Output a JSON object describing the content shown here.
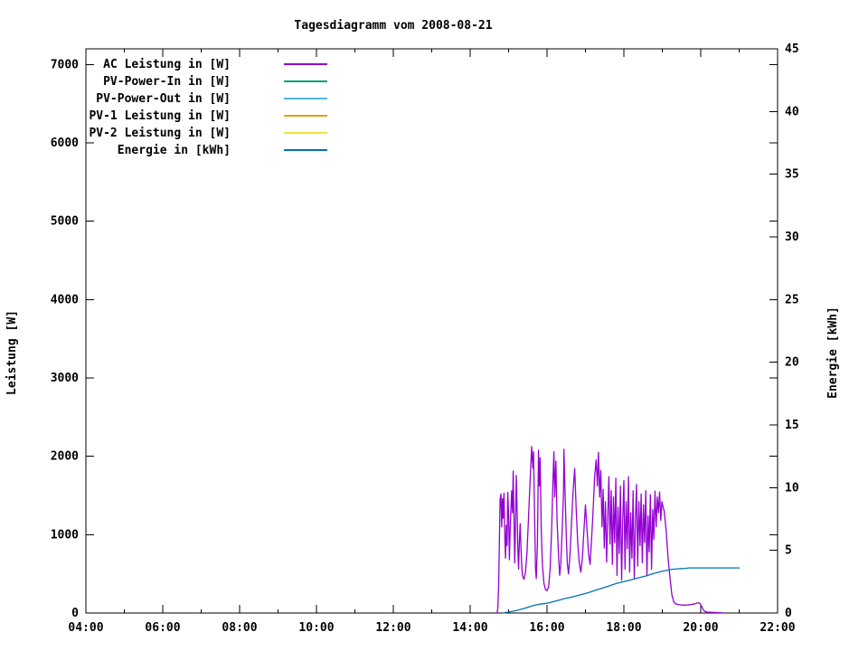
{
  "chart_data": {
    "type": "line",
    "title": "Tagesdiagramm vom 2008-08-21",
    "ylabel_left": "Leistung [W]",
    "ylabel_right": "Energie [kWh]",
    "background_color": "#ffffff",
    "axis_color": "#000000",
    "grid": false,
    "legend_position": "top-left-inside",
    "x_axis": {
      "min": 4,
      "max": 22,
      "major_hours": [
        4,
        6,
        8,
        10,
        12,
        14,
        16,
        18,
        20,
        22
      ],
      "major_labels": [
        "04:00",
        "06:00",
        "08:00",
        "10:00",
        "12:00",
        "14:00",
        "16:00",
        "18:00",
        "20:00",
        "22:00"
      ],
      "minor_hours": [
        5,
        7,
        9,
        11,
        13,
        15,
        17,
        19,
        21
      ]
    },
    "y_left": {
      "min": 0,
      "max": 7200,
      "ticks": [
        0,
        1000,
        2000,
        3000,
        4000,
        5000,
        6000,
        7000
      ],
      "tick_labels": [
        "0",
        "1000",
        "2000",
        "3000",
        "4000",
        "5000",
        "6000",
        "7000"
      ]
    },
    "y_right": {
      "min": 0,
      "max": 45,
      "ticks": [
        0,
        5,
        10,
        15,
        20,
        25,
        30,
        35,
        40,
        45
      ],
      "tick_labels": [
        "0",
        "5",
        "10",
        "15",
        "20",
        "25",
        "30",
        "35",
        "40",
        "45"
      ]
    },
    "series": [
      {
        "name": "AC Leistung in [W]",
        "color": "#9400D3",
        "axis": "left",
        "points": [
          [
            14.7,
            5
          ],
          [
            14.72,
            60
          ],
          [
            14.74,
            350
          ],
          [
            14.76,
            900
          ],
          [
            14.78,
            1450
          ],
          [
            14.8,
            1520
          ],
          [
            14.82,
            1100
          ],
          [
            14.84,
            1460
          ],
          [
            14.86,
            1210
          ],
          [
            14.88,
            1530
          ],
          [
            14.9,
            980
          ],
          [
            14.92,
            700
          ],
          [
            14.94,
            1120
          ],
          [
            14.96,
            860
          ],
          [
            14.98,
            1540
          ],
          [
            15.0,
            1260
          ],
          [
            15.02,
            680
          ],
          [
            15.04,
            1060
          ],
          [
            15.06,
            1300
          ],
          [
            15.08,
            1560
          ],
          [
            15.1,
            1280
          ],
          [
            15.12,
            1811
          ],
          [
            15.14,
            1180
          ],
          [
            15.16,
            640
          ],
          [
            15.18,
            1100
          ],
          [
            15.2,
            1756
          ],
          [
            15.22,
            1320
          ],
          [
            15.24,
            830
          ],
          [
            15.26,
            560
          ],
          [
            15.28,
            900
          ],
          [
            15.3,
            1140
          ],
          [
            15.32,
            860
          ],
          [
            15.34,
            620
          ],
          [
            15.36,
            480
          ],
          [
            15.4,
            430
          ],
          [
            15.44,
            520
          ],
          [
            15.48,
            780
          ],
          [
            15.52,
            1240
          ],
          [
            15.56,
            1690
          ],
          [
            15.6,
            2124
          ],
          [
            15.63,
            1850
          ],
          [
            15.65,
            2060
          ],
          [
            15.68,
            1140
          ],
          [
            15.7,
            560
          ],
          [
            15.72,
            440
          ],
          [
            15.75,
            900
          ],
          [
            15.78,
            2078
          ],
          [
            15.8,
            1620
          ],
          [
            15.82,
            1980
          ],
          [
            15.85,
            1080
          ],
          [
            15.88,
            620
          ],
          [
            15.92,
            380
          ],
          [
            15.96,
            300
          ],
          [
            16.0,
            285
          ],
          [
            16.04,
            330
          ],
          [
            16.08,
            560
          ],
          [
            16.12,
            1060
          ],
          [
            16.15,
            1620
          ],
          [
            16.18,
            2057
          ],
          [
            16.2,
            1480
          ],
          [
            16.23,
            1940
          ],
          [
            16.26,
            1180
          ],
          [
            16.3,
            720
          ],
          [
            16.33,
            480
          ],
          [
            16.36,
            640
          ],
          [
            16.4,
            1120
          ],
          [
            16.43,
            1560
          ],
          [
            16.44,
            2090
          ],
          [
            16.47,
            1520
          ],
          [
            16.5,
            980
          ],
          [
            16.53,
            620
          ],
          [
            16.56,
            500
          ],
          [
            16.6,
            760
          ],
          [
            16.64,
            1180
          ],
          [
            16.68,
            1560
          ],
          [
            16.72,
            1845
          ],
          [
            16.76,
            1320
          ],
          [
            16.8,
            890
          ],
          [
            16.84,
            640
          ],
          [
            16.88,
            520
          ],
          [
            16.92,
            700
          ],
          [
            16.96,
            1050
          ],
          [
            17.0,
            1380
          ],
          [
            17.04,
            1080
          ],
          [
            17.08,
            760
          ],
          [
            17.12,
            620
          ],
          [
            17.16,
            940
          ],
          [
            17.2,
            1320
          ],
          [
            17.24,
            1750
          ],
          [
            17.28,
            1955
          ],
          [
            17.31,
            1620
          ],
          [
            17.34,
            2050
          ],
          [
            17.37,
            1480
          ],
          [
            17.4,
            1820
          ],
          [
            17.43,
            1100
          ],
          [
            17.46,
            1580
          ],
          [
            17.49,
            830
          ],
          [
            17.52,
            1420
          ],
          [
            17.55,
            650
          ],
          [
            17.58,
            1180
          ],
          [
            17.61,
            1740
          ],
          [
            17.64,
            880
          ],
          [
            17.67,
            1560
          ],
          [
            17.7,
            620
          ],
          [
            17.73,
            1480
          ],
          [
            17.76,
            900
          ],
          [
            17.79,
            1720
          ],
          [
            17.82,
            480
          ],
          [
            17.85,
            1350
          ],
          [
            17.88,
            760
          ],
          [
            17.91,
            1620
          ],
          [
            17.94,
            420
          ],
          [
            17.97,
            1150
          ],
          [
            18.0,
            1690
          ],
          [
            18.03,
            560
          ],
          [
            18.06,
            1420
          ],
          [
            18.09,
            820
          ],
          [
            18.12,
            1740
          ],
          [
            18.15,
            520
          ],
          [
            18.18,
            1280
          ],
          [
            18.21,
            700
          ],
          [
            18.24,
            1560
          ],
          [
            18.27,
            440
          ],
          [
            18.3,
            1180
          ],
          [
            18.33,
            1640
          ],
          [
            18.36,
            600
          ],
          [
            18.39,
            1420
          ],
          [
            18.42,
            860
          ],
          [
            18.45,
            1520
          ],
          [
            18.48,
            640
          ],
          [
            18.51,
            1380
          ],
          [
            18.54,
            900
          ],
          [
            18.57,
            1560
          ],
          [
            18.6,
            480
          ],
          [
            18.63,
            1240
          ],
          [
            18.66,
            780
          ],
          [
            18.69,
            1510
          ],
          [
            18.72,
            560
          ],
          [
            18.75,
            1320
          ],
          [
            18.78,
            940
          ],
          [
            18.81,
            1555
          ],
          [
            18.84,
            1100
          ],
          [
            18.87,
            1480
          ],
          [
            18.9,
            1280
          ],
          [
            18.93,
            1545
          ],
          [
            18.96,
            1180
          ],
          [
            18.99,
            1420
          ],
          [
            19.02,
            1350
          ],
          [
            19.05,
            1300
          ],
          [
            19.1,
            1050
          ],
          [
            19.15,
            700
          ],
          [
            19.2,
            450
          ],
          [
            19.25,
            230
          ],
          [
            19.3,
            140
          ],
          [
            19.35,
            115
          ],
          [
            19.45,
            105
          ],
          [
            19.55,
            100
          ],
          [
            19.65,
            102
          ],
          [
            19.75,
            108
          ],
          [
            19.85,
            118
          ],
          [
            19.92,
            130
          ],
          [
            19.98,
            125
          ],
          [
            20.03,
            80
          ],
          [
            20.08,
            30
          ],
          [
            20.15,
            12
          ],
          [
            20.3,
            8
          ],
          [
            20.45,
            6
          ],
          [
            20.55,
            4
          ]
        ]
      },
      {
        "name": "PV-Power-In in [W]",
        "color": "#009E73",
        "axis": "left",
        "points": []
      },
      {
        "name": "PV-Power-Out in [W]",
        "color": "#56B4E9",
        "axis": "left",
        "points": []
      },
      {
        "name": "PV-1 Leistung in [W]",
        "color": "#E69F00",
        "axis": "left",
        "points": []
      },
      {
        "name": "PV-2 Leistung in [W]",
        "color": "#F0E442",
        "axis": "left",
        "points": []
      },
      {
        "name": "Energie in [kWh]",
        "color": "#0072B2",
        "axis": "right",
        "points": [
          [
            14.86,
            0
          ],
          [
            14.9,
            0.03
          ],
          [
            15.0,
            0.08
          ],
          [
            15.1,
            0.14
          ],
          [
            15.2,
            0.2
          ],
          [
            15.3,
            0.28
          ],
          [
            15.4,
            0.36
          ],
          [
            15.5,
            0.46
          ],
          [
            15.6,
            0.56
          ],
          [
            15.7,
            0.64
          ],
          [
            15.8,
            0.7
          ],
          [
            15.9,
            0.74
          ],
          [
            16.0,
            0.78
          ],
          [
            16.1,
            0.86
          ],
          [
            16.2,
            0.94
          ],
          [
            16.3,
            1.02
          ],
          [
            16.4,
            1.1
          ],
          [
            16.5,
            1.18
          ],
          [
            16.6,
            1.25
          ],
          [
            16.7,
            1.32
          ],
          [
            16.8,
            1.4
          ],
          [
            16.9,
            1.48
          ],
          [
            17.0,
            1.56
          ],
          [
            17.1,
            1.65
          ],
          [
            17.2,
            1.75
          ],
          [
            17.3,
            1.85
          ],
          [
            17.4,
            1.95
          ],
          [
            17.5,
            2.05
          ],
          [
            17.6,
            2.15
          ],
          [
            17.7,
            2.25
          ],
          [
            17.8,
            2.35
          ],
          [
            17.9,
            2.43
          ],
          [
            18.0,
            2.5
          ],
          [
            18.1,
            2.58
          ],
          [
            18.2,
            2.66
          ],
          [
            18.3,
            2.74
          ],
          [
            18.4,
            2.82
          ],
          [
            18.5,
            2.9
          ],
          [
            18.6,
            2.98
          ],
          [
            18.7,
            3.08
          ],
          [
            18.8,
            3.17
          ],
          [
            18.9,
            3.25
          ],
          [
            19.0,
            3.33
          ],
          [
            19.1,
            3.4
          ],
          [
            19.2,
            3.46
          ],
          [
            19.3,
            3.5
          ],
          [
            19.4,
            3.53
          ],
          [
            19.5,
            3.55
          ],
          [
            19.6,
            3.56
          ],
          [
            19.7,
            3.6
          ],
          [
            20.0,
            3.6
          ],
          [
            20.5,
            3.6
          ],
          [
            21.0,
            3.6
          ]
        ]
      }
    ]
  }
}
